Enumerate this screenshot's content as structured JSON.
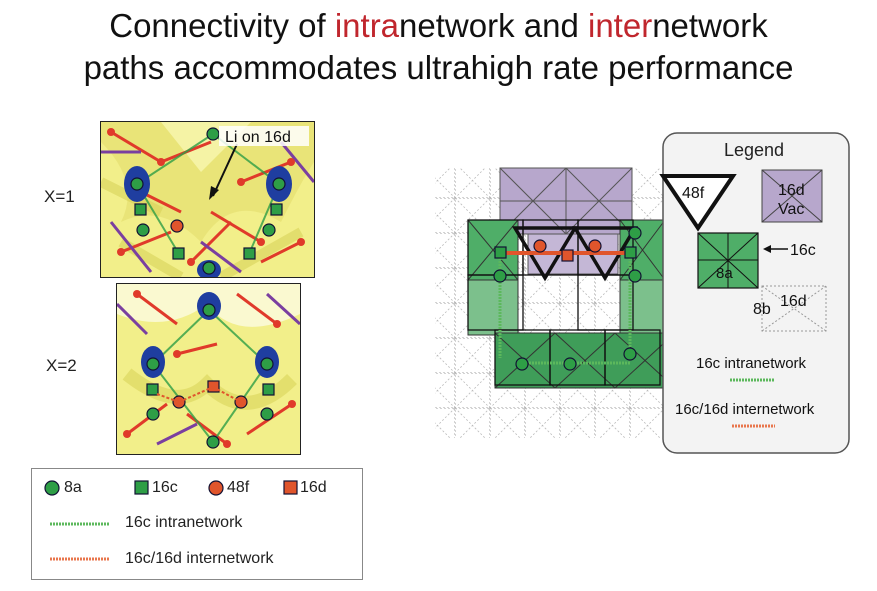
{
  "title": {
    "line1_pre": "Connectivity of ",
    "line1_red1": "intra",
    "line1_mid": "network and ",
    "line1_red2": "inter",
    "line1_post": "network",
    "line2": "paths accommodates ultrahigh rate performance"
  },
  "left": {
    "panel1_label": "X=1",
    "panel2_label": "X=2",
    "annotation": "Li on 16d"
  },
  "left_legend": {
    "items": [
      {
        "label": "8a",
        "shape": "circle",
        "color": "#2e9e46"
      },
      {
        "label": "16c",
        "shape": "square",
        "color": "#2e9e46"
      },
      {
        "label": "48f",
        "shape": "circle",
        "color": "#e0552c"
      },
      {
        "label": "16d",
        "shape": "square",
        "color": "#e0552c"
      }
    ],
    "intra_label": "16c intranetwork",
    "inter_label": "16c/16d internetwork"
  },
  "right": {
    "legend_title": "Legend",
    "label_48f": "48f",
    "label_16d_vac_1": "16d",
    "label_16d_vac_2": "Vac",
    "label_16c": "16c",
    "label_8a": "8a",
    "label_8b": "8b",
    "label_16d": "16d",
    "intra_label": "16c intranetwork",
    "inter_label": "16c/16d internetwork"
  },
  "colors": {
    "green": "#2e9e46",
    "orange": "#e0552c",
    "purple": "#b7a7cc",
    "title_red": "#c0262d",
    "yellow": "#f2ef8a"
  }
}
